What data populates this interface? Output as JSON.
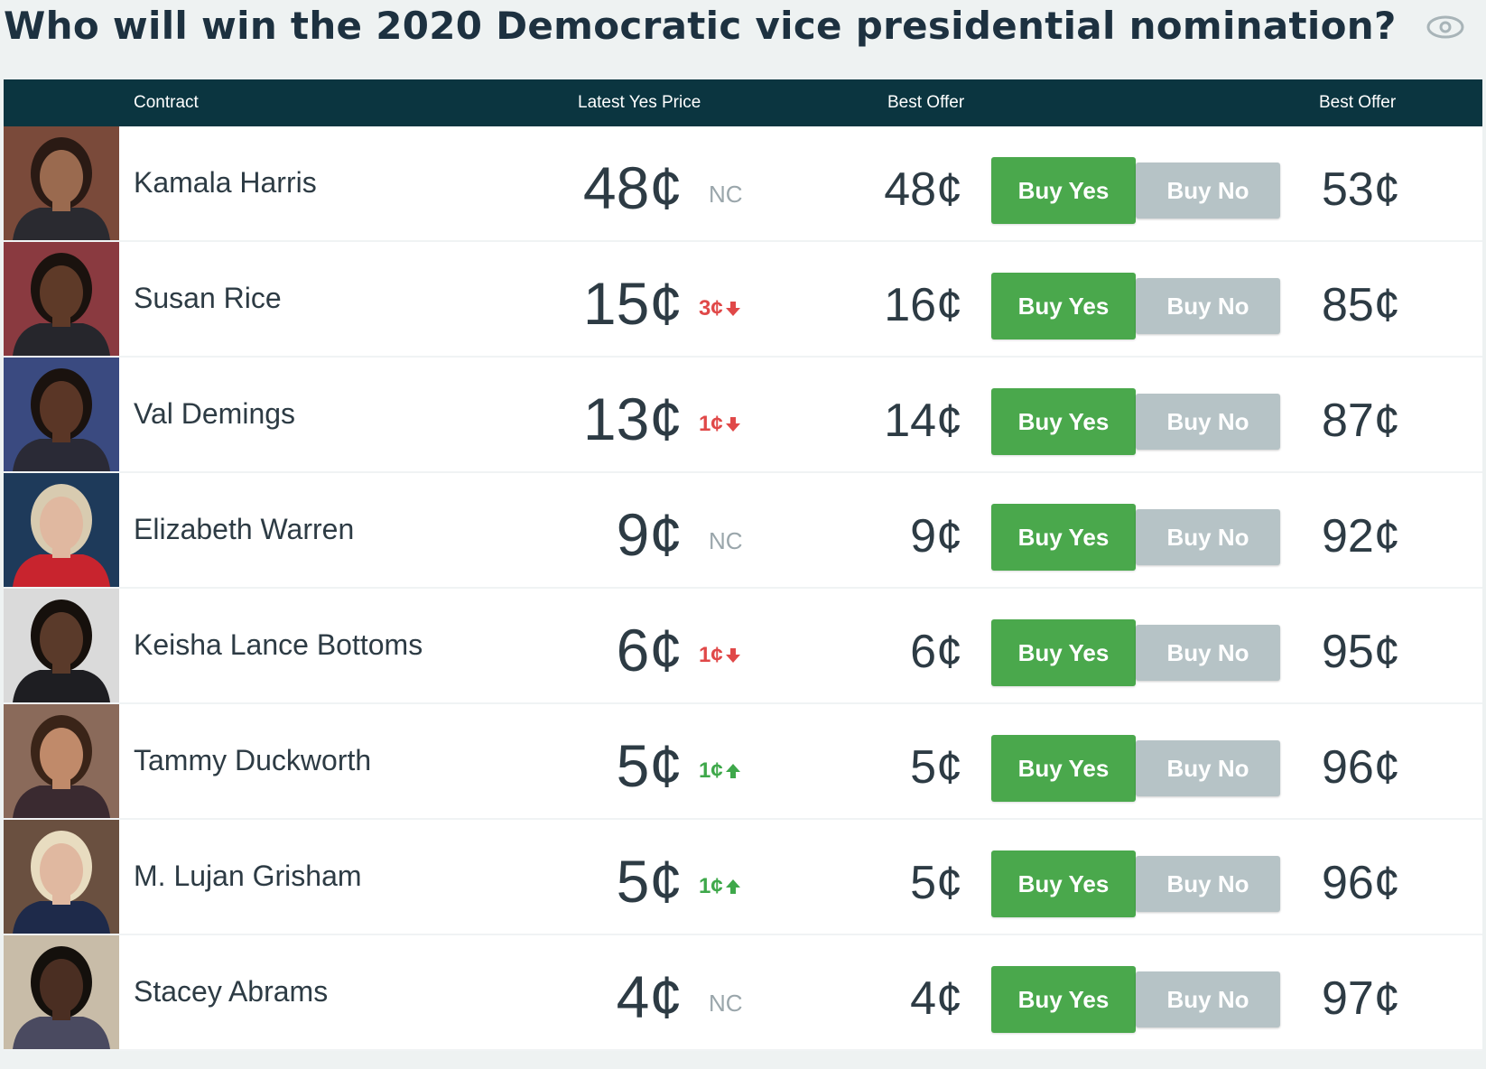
{
  "title": "Who will win the 2020 Democratic vice presidential nomination?",
  "colors": {
    "header_bg": "#0b3540",
    "buy_yes": "#4aa84c",
    "buy_no": "#b6c3c6",
    "down": "#e04848",
    "up": "#3ea84a"
  },
  "header": {
    "contract": "Contract",
    "latest_yes_price": "Latest Yes Price",
    "best_offer_yes": "Best Offer",
    "best_offer_no": "Best Offer"
  },
  "contracts": [
    {
      "name": "Kamala Harris",
      "price": "48¢",
      "change": "NC",
      "direction": "none",
      "best_yes": "48¢",
      "buy_yes": "Buy Yes",
      "buy_no": "Buy No",
      "best_no": "53¢",
      "bg": "#7a4a3a",
      "skin": "#9a6a4f",
      "hair": "#2a1a14",
      "cloth": "#2a2a30"
    },
    {
      "name": "Susan Rice",
      "price": "15¢",
      "change": "3¢",
      "direction": "down",
      "best_yes": "16¢",
      "buy_yes": "Buy Yes",
      "buy_no": "Buy No",
      "best_no": "85¢",
      "bg": "#8a3a40",
      "skin": "#5e3a28",
      "hair": "#1a120e",
      "cloth": "#26262c"
    },
    {
      "name": "Val Demings",
      "price": "13¢",
      "change": "1¢",
      "direction": "down",
      "best_yes": "14¢",
      "buy_yes": "Buy Yes",
      "buy_no": "Buy No",
      "best_no": "87¢",
      "bg": "#3a4a80",
      "skin": "#5a3626",
      "hair": "#1a120e",
      "cloth": "#2a2a36"
    },
    {
      "name": "Elizabeth Warren",
      "price": "9¢",
      "change": "NC",
      "direction": "none",
      "best_yes": "9¢",
      "buy_yes": "Buy Yes",
      "buy_no": "Buy No",
      "best_no": "92¢",
      "bg": "#1e3a5a",
      "skin": "#e0b8a0",
      "hair": "#d8cbb0",
      "cloth": "#c8242e"
    },
    {
      "name": "Keisha Lance Bottoms",
      "price": "6¢",
      "change": "1¢",
      "direction": "down",
      "best_yes": "6¢",
      "buy_yes": "Buy Yes",
      "buy_no": "Buy No",
      "best_no": "95¢",
      "bg": "#dadada",
      "skin": "#5a3a2a",
      "hair": "#16100c",
      "cloth": "#1e1e22"
    },
    {
      "name": "Tammy Duckworth",
      "price": "5¢",
      "change": "1¢",
      "direction": "up",
      "best_yes": "5¢",
      "buy_yes": "Buy Yes",
      "buy_no": "Buy No",
      "best_no": "96¢",
      "bg": "#8a6a5a",
      "skin": "#c08a6a",
      "hair": "#3a2418",
      "cloth": "#3a2a30"
    },
    {
      "name": "M. Lujan Grisham",
      "price": "5¢",
      "change": "1¢",
      "direction": "up",
      "best_yes": "5¢",
      "buy_yes": "Buy Yes",
      "buy_no": "Buy No",
      "best_no": "96¢",
      "bg": "#6a5040",
      "skin": "#e0b8a0",
      "hair": "#e8dcc0",
      "cloth": "#1e2a4a"
    },
    {
      "name": "Stacey Abrams",
      "price": "4¢",
      "change": "NC",
      "direction": "none",
      "best_yes": "4¢",
      "buy_yes": "Buy Yes",
      "buy_no": "Buy No",
      "best_no": "97¢",
      "bg": "#c8bca8",
      "skin": "#4a2e22",
      "hair": "#14100c",
      "cloth": "#4a4a60"
    }
  ]
}
